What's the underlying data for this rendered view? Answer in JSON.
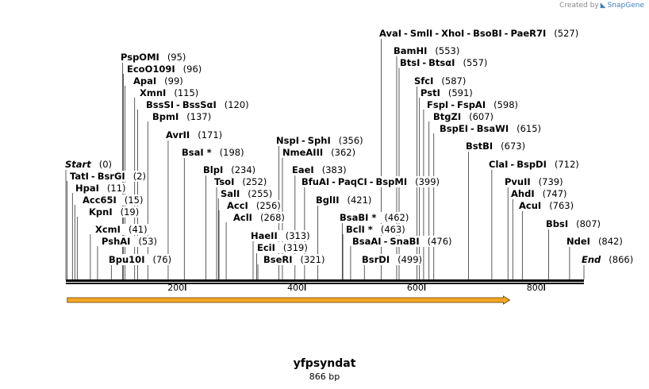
{
  "credit": {
    "prefix": "Created by",
    "brand": "SnapGene"
  },
  "sequence": {
    "name": "yfpsyndat",
    "length_label": "866 bp",
    "length": 866
  },
  "ruler": {
    "ticks": [
      200,
      400,
      600,
      800
    ]
  },
  "feature": {
    "name": "orf-arrow",
    "start": 1,
    "end": 742,
    "color": "#f5a623"
  },
  "sites": [
    {
      "names": [
        "Start"
      ],
      "pos": "(0)",
      "bp": 0,
      "italic": true
    },
    {
      "names": [
        "TatI",
        "BsrGI"
      ],
      "pos": "(2)",
      "bp": 2
    },
    {
      "names": [
        "HpaI"
      ],
      "pos": "(11)",
      "bp": 11
    },
    {
      "names": [
        "Acc65I"
      ],
      "pos": "(15)",
      "bp": 15
    },
    {
      "names": [
        "KpnI"
      ],
      "pos": "(19)",
      "bp": 19
    },
    {
      "names": [
        "XcmI"
      ],
      "pos": "(41)",
      "bp": 41
    },
    {
      "names": [
        "PshAI"
      ],
      "pos": "(53)",
      "bp": 53
    },
    {
      "names": [
        "Bpu10I"
      ],
      "pos": "(76)",
      "bp": 76
    },
    {
      "names": [
        "PspOMI"
      ],
      "pos": "(95)",
      "bp": 95
    },
    {
      "names": [
        "EcoO109I"
      ],
      "pos": "(96)",
      "bp": 96
    },
    {
      "names": [
        "ApaI"
      ],
      "pos": "(99)",
      "bp": 99
    },
    {
      "names": [
        "XmnI"
      ],
      "pos": "(115)",
      "bp": 115
    },
    {
      "names": [
        "BssSI",
        "BssSαI"
      ],
      "pos": "(120)",
      "bp": 120
    },
    {
      "names": [
        "BpmI"
      ],
      "pos": "(137)",
      "bp": 137
    },
    {
      "names": [
        "AvrII"
      ],
      "pos": "(171)",
      "bp": 171
    },
    {
      "names": [
        "BsaI *"
      ],
      "pos": "(198)",
      "bp": 198
    },
    {
      "names": [
        "BlpI"
      ],
      "pos": "(234)",
      "bp": 234
    },
    {
      "names": [
        "TsoI"
      ],
      "pos": "(252)",
      "bp": 252
    },
    {
      "names": [
        "SalI"
      ],
      "pos": "(255)",
      "bp": 255
    },
    {
      "names": [
        "AccI"
      ],
      "pos": "(256)",
      "bp": 256
    },
    {
      "names": [
        "AclI"
      ],
      "pos": "(268)",
      "bp": 268
    },
    {
      "names": [
        "HaeII"
      ],
      "pos": "(313)",
      "bp": 313
    },
    {
      "names": [
        "EciI"
      ],
      "pos": "(319)",
      "bp": 319
    },
    {
      "names": [
        "BseRI"
      ],
      "pos": "(321)",
      "bp": 321
    },
    {
      "names": [
        "NspI",
        "SphI"
      ],
      "pos": "(356)",
      "bp": 356
    },
    {
      "names": [
        "NmeAIII"
      ],
      "pos": "(362)",
      "bp": 362
    },
    {
      "names": [
        "EaeI"
      ],
      "pos": "(383)",
      "bp": 383
    },
    {
      "names": [
        "BfuAI",
        "PaqCI",
        "BspMI"
      ],
      "pos": "(399)",
      "bp": 399
    },
    {
      "names": [
        "BglII"
      ],
      "pos": "(421)",
      "bp": 421
    },
    {
      "names": [
        "BsaBI *"
      ],
      "pos": "(462)",
      "bp": 462
    },
    {
      "names": [
        "BclI *"
      ],
      "pos": "(463)",
      "bp": 463
    },
    {
      "names": [
        "BsaAI",
        "SnaBI"
      ],
      "pos": "(476)",
      "bp": 476
    },
    {
      "names": [
        "BsrDI"
      ],
      "pos": "(499)",
      "bp": 499
    },
    {
      "names": [
        "AvaI",
        "SmlI",
        "XhoI",
        "BsoBI",
        "PaeR7I"
      ],
      "pos": "(527)",
      "bp": 527
    },
    {
      "names": [
        "BamHI"
      ],
      "pos": "(553)",
      "bp": 553
    },
    {
      "names": [
        "BtsI",
        "BtsαI"
      ],
      "pos": "(557)",
      "bp": 557
    },
    {
      "names": [
        "SfcI"
      ],
      "pos": "(587)",
      "bp": 587
    },
    {
      "names": [
        "PstI"
      ],
      "pos": "(591)",
      "bp": 591
    },
    {
      "names": [
        "FspI",
        "FspAI"
      ],
      "pos": "(598)",
      "bp": 598
    },
    {
      "names": [
        "BtgZI"
      ],
      "pos": "(607)",
      "bp": 607
    },
    {
      "names": [
        "BspEI",
        "BsaWI"
      ],
      "pos": "(615)",
      "bp": 615
    },
    {
      "names": [
        "BstBI"
      ],
      "pos": "(673)",
      "bp": 673
    },
    {
      "names": [
        "ClaI",
        "BspDI"
      ],
      "pos": "(712)",
      "bp": 712
    },
    {
      "names": [
        "PvuII"
      ],
      "pos": "(739)",
      "bp": 739
    },
    {
      "names": [
        "AhdI"
      ],
      "pos": "(747)",
      "bp": 747
    },
    {
      "names": [
        "AcuI"
      ],
      "pos": "(763)",
      "bp": 763
    },
    {
      "names": [
        "BbsI"
      ],
      "pos": "(807)",
      "bp": 807
    },
    {
      "names": [
        "NdeI"
      ],
      "pos": "(842)",
      "bp": 842
    },
    {
      "names": [
        "End"
      ],
      "pos": "(866)",
      "bp": 866,
      "italic": true
    }
  ]
}
